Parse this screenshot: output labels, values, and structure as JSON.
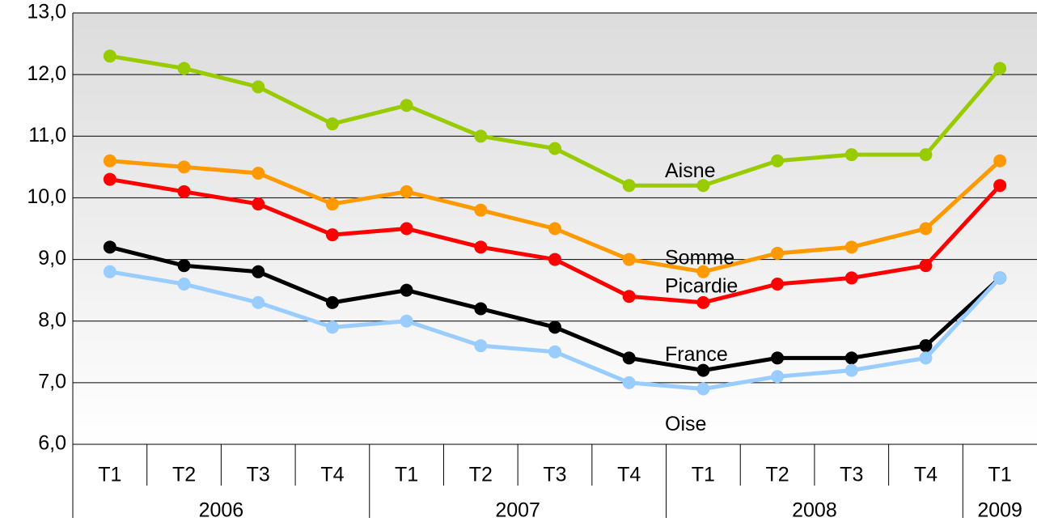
{
  "chart_data": {
    "type": "line",
    "categories": [
      "T1",
      "T2",
      "T3",
      "T4",
      "T1",
      "T2",
      "T3",
      "T4",
      "T1",
      "T2",
      "T3",
      "T4",
      "T1"
    ],
    "years": [
      "2006",
      "2006",
      "2006",
      "2006",
      "2007",
      "2007",
      "2007",
      "2007",
      "2008",
      "2008",
      "2008",
      "2008",
      "2009"
    ],
    "series": [
      {
        "name": "Aisne",
        "color": "#99cc00",
        "values": [
          12.3,
          12.1,
          11.8,
          11.2,
          11.5,
          11.0,
          10.8,
          10.2,
          10.2,
          10.6,
          10.7,
          10.7,
          12.1
        ]
      },
      {
        "name": "Somme",
        "color": "#ff9900",
        "values": [
          10.6,
          10.5,
          10.4,
          9.9,
          10.1,
          9.8,
          9.5,
          9.0,
          8.8,
          9.1,
          9.2,
          9.5,
          10.6
        ]
      },
      {
        "name": "Picardie",
        "color": "#ff0000",
        "values": [
          10.3,
          10.1,
          9.9,
          9.4,
          9.5,
          9.2,
          9.0,
          8.4,
          8.3,
          8.6,
          8.7,
          8.9,
          10.2
        ]
      },
      {
        "name": "France",
        "color": "#000000",
        "values": [
          9.2,
          8.9,
          8.8,
          8.3,
          8.5,
          8.2,
          7.9,
          7.4,
          7.2,
          7.4,
          7.4,
          7.6,
          8.7
        ]
      },
      {
        "name": "Oise",
        "color": "#99ccff",
        "values": [
          8.8,
          8.6,
          8.3,
          7.9,
          8.0,
          7.6,
          7.5,
          7.0,
          6.9,
          7.1,
          7.2,
          7.4,
          8.7
        ]
      }
    ],
    "ylim": [
      6,
      13
    ],
    "yticks": [
      {
        "value": 6,
        "label": "6,0"
      },
      {
        "value": 7,
        "label": "7,0"
      },
      {
        "value": 8,
        "label": "8,0"
      },
      {
        "value": 9,
        "label": "9,0"
      },
      {
        "value": 10,
        "label": "10,0"
      },
      {
        "value": 11,
        "label": "11,0"
      },
      {
        "value": 12,
        "label": "12,0"
      },
      {
        "value": 13,
        "label": "13,0"
      }
    ],
    "grid": true
  }
}
